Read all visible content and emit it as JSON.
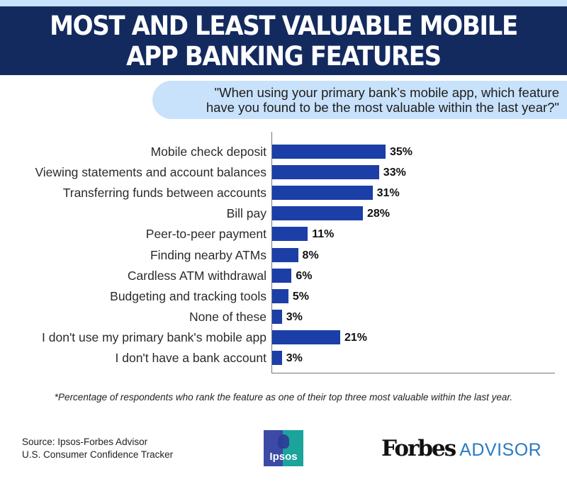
{
  "header": {
    "title_line1": "MOST AND LEAST VALUABLE MOBILE",
    "title_line2": "APP BANKING FEATURES",
    "bg_color": "#132a5e"
  },
  "question": {
    "line1": "\"When using your primary bank’s mobile app, which feature",
    "line2": "have you found to be the most valuable within the last year?\""
  },
  "rows": [
    {
      "label": "Mobile check deposit",
      "value": 35,
      "display": "35%"
    },
    {
      "label": "Viewing statements and account balances",
      "value": 33,
      "display": "33%"
    },
    {
      "label": "Transferring funds between accounts",
      "value": 31,
      "display": "31%"
    },
    {
      "label": "Bill pay",
      "value": 28,
      "display": "28%"
    },
    {
      "label": "Peer-to-peer payment",
      "value": 11,
      "display": "11%"
    },
    {
      "label": "Finding nearby ATMs",
      "value": 8,
      "display": "8%"
    },
    {
      "label": "Cardless ATM withdrawal",
      "value": 6,
      "display": "6%"
    },
    {
      "label": "Budgeting and tracking tools",
      "value": 5,
      "display": "5%"
    },
    {
      "label": "None of these",
      "value": 3,
      "display": "3%"
    },
    {
      "label": "I don't use my primary bank's mobile app",
      "value": 21,
      "display": "21%"
    },
    {
      "label": "I don't have a bank account",
      "value": 3,
      "display": "3%"
    }
  ],
  "footnote": "*Percentage of respondents who rank the feature as one of their top three most valuable within the last year.",
  "source": {
    "line1": "Source: Ipsos-Forbes Advisor",
    "line2": "U.S. Consumer Confidence Tracker"
  },
  "logos": {
    "ipsos": "Ipsos",
    "forbes_main": "Forbes",
    "forbes_sub": "ADVISOR"
  },
  "colors": {
    "bar": "#1b3fa6",
    "question_bg": "#c9e2fb",
    "forbes_advisor_blue": "#2a7ac2"
  },
  "chart_data": {
    "type": "bar",
    "orientation": "horizontal",
    "title": "MOST AND LEAST VALUABLE MOBILE APP BANKING FEATURES",
    "subtitle": "\"When using your primary bank’s mobile app, which feature have you found to be the most valuable within the last year?\"",
    "categories": [
      "Mobile check deposit",
      "Viewing statements and account balances",
      "Transferring funds between accounts",
      "Bill pay",
      "Peer-to-peer payment",
      "Finding nearby ATMs",
      "Cardless ATM withdrawal",
      "Budgeting and tracking tools",
      "None of these",
      "I don't use my primary bank's mobile app",
      "I don't have a bank account"
    ],
    "values": [
      35,
      33,
      31,
      28,
      11,
      8,
      6,
      5,
      3,
      21,
      3
    ],
    "unit": "%",
    "xlabel": "",
    "ylabel": "",
    "data_labels": true,
    "grid": false,
    "legend": null,
    "annotations": [
      "*Percentage of respondents who rank the feature as one of their top three most valuable within the last year."
    ]
  }
}
